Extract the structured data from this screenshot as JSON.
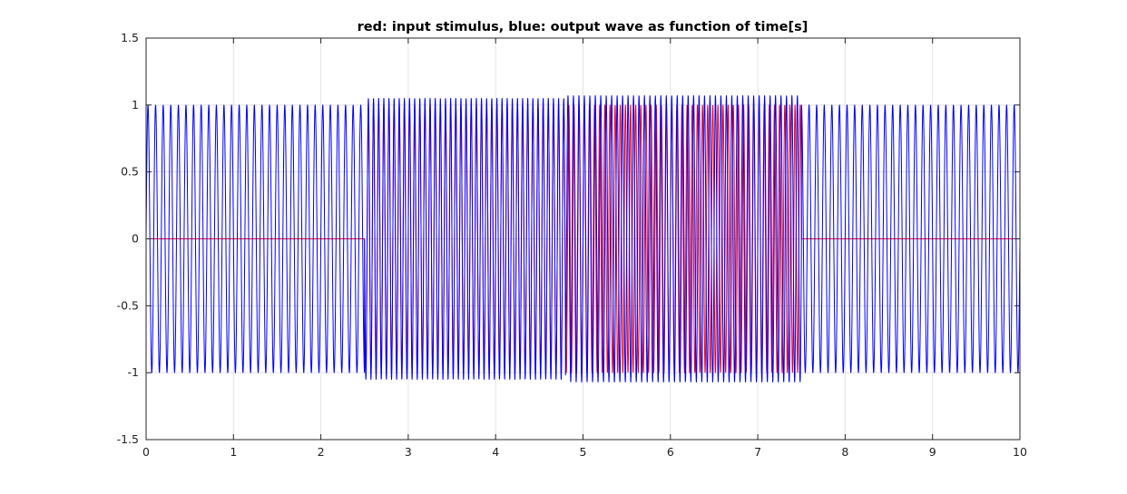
{
  "chart_data": {
    "type": "line",
    "title": "red: input stimulus, blue: output wave as function of time[s]",
    "xlabel": "",
    "ylabel": "",
    "xlim": [
      0,
      10
    ],
    "ylim": [
      -1.5,
      1.5
    ],
    "xticks": [
      "0",
      "1",
      "2",
      "3",
      "4",
      "5",
      "6",
      "7",
      "8",
      "9",
      "10"
    ],
    "yticks": [
      "-1.5",
      "-1",
      "-0.5",
      "0",
      "0.5",
      "1",
      "1.5"
    ],
    "grid": true,
    "legend": "none",
    "series": [
      {
        "color": "#ff0000",
        "description_units": "amplitude",
        "segments": [
          {
            "t_start": 0,
            "t_end": 2.5,
            "frequency_hz": 0,
            "amplitude": 0
          },
          {
            "t_start": 2.5,
            "t_end": 4.8,
            "frequency_hz": 17,
            "amplitude": 1
          },
          {
            "t_start": 4.8,
            "t_end": 7.5,
            "frequency_hz": 17,
            "amplitude": 1
          },
          {
            "t_start": 7.5,
            "t_end": 10,
            "frequency_hz": 0,
            "amplitude": 0
          }
        ]
      },
      {
        "color": "#0000ff",
        "segments": [
          {
            "t_start": 0,
            "t_end": 2.5,
            "frequency_hz": 11.5,
            "amplitude": 1
          },
          {
            "t_start": 2.5,
            "t_end": 4.8,
            "frequency_hz": 17,
            "amplitude": 1.05
          },
          {
            "t_start": 4.8,
            "t_end": 7.5,
            "frequency_hz": 16,
            "amplitude": 1.07
          },
          {
            "t_start": 7.5,
            "t_end": 10,
            "frequency_hz": 11.5,
            "amplitude": 1
          }
        ]
      }
    ]
  }
}
